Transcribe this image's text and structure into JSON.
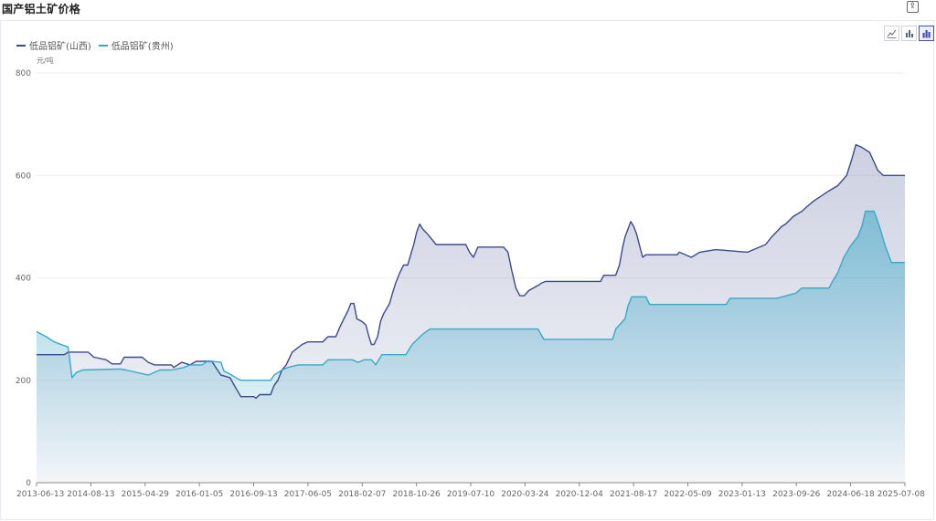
{
  "title": "国产铝土矿价格",
  "legend_labels": [
    "低品铝矿(山西)",
    "低品铝矿(贵州)"
  ],
  "unit_label": "元/吨",
  "colors": {
    "series_shanxi": "#3b4a8a",
    "series_guizhou": "#3ba8c8"
  },
  "icons": [
    "export-icon",
    "line-chart-icon",
    "bar-chart-icon",
    "area-chart-icon"
  ],
  "chart_data": {
    "type": "area",
    "title": "国产铝土矿价格",
    "ylabel": "元/吨",
    "ylim": [
      0,
      800
    ],
    "y_ticks": [
      0,
      200,
      400,
      600,
      800
    ],
    "x_ticks": [
      "2013-06-13",
      "2014-08-13",
      "2015-04-29",
      "2016-01-05",
      "2016-09-13",
      "2017-06-05",
      "2018-02-07",
      "2018-10-26",
      "2019-07-10",
      "2020-03-24",
      "2020-12-04",
      "2021-08-17",
      "2022-05-09",
      "2023-01-13",
      "2023-09-26",
      "2024-06-18",
      "2025-07-08"
    ],
    "x_range": [
      "2013-06-13",
      "2025-07-08"
    ],
    "legend_position": "top-left",
    "series": [
      {
        "name": "低品铝矿(山西)",
        "points": [
          [
            "2013-06-13",
            250
          ],
          [
            "2013-11-01",
            250
          ],
          [
            "2013-11-20",
            255
          ],
          [
            "2014-03-01",
            255
          ],
          [
            "2014-04-01",
            245
          ],
          [
            "2014-06-01",
            240
          ],
          [
            "2014-07-01",
            232
          ],
          [
            "2014-08-13",
            232
          ],
          [
            "2014-09-01",
            245
          ],
          [
            "2014-12-01",
            245
          ],
          [
            "2015-01-01",
            235
          ],
          [
            "2015-02-01",
            230
          ],
          [
            "2015-04-29",
            230
          ],
          [
            "2015-05-10",
            225
          ],
          [
            "2015-06-20",
            235
          ],
          [
            "2015-08-01",
            230
          ],
          [
            "2015-09-01",
            237
          ],
          [
            "2015-11-20",
            237
          ],
          [
            "2015-12-10",
            225
          ],
          [
            "2016-01-05",
            210
          ],
          [
            "2016-02-20",
            205
          ],
          [
            "2016-03-20",
            185
          ],
          [
            "2016-04-15",
            168
          ],
          [
            "2016-06-20",
            168
          ],
          [
            "2016-07-01",
            165
          ],
          [
            "2016-07-20",
            172
          ],
          [
            "2016-09-13",
            172
          ],
          [
            "2016-10-01",
            190
          ],
          [
            "2016-10-20",
            200
          ],
          [
            "2016-11-10",
            220
          ],
          [
            "2016-12-01",
            230
          ],
          [
            "2017-01-01",
            255
          ],
          [
            "2017-02-20",
            270
          ],
          [
            "2017-03-20",
            275
          ],
          [
            "2017-06-05",
            275
          ],
          [
            "2017-07-01",
            285
          ],
          [
            "2017-08-10",
            285
          ],
          [
            "2017-09-01",
            305
          ],
          [
            "2017-09-20",
            320
          ],
          [
            "2017-10-10",
            335
          ],
          [
            "2017-10-25",
            350
          ],
          [
            "2017-11-10",
            350
          ],
          [
            "2017-11-25",
            320
          ],
          [
            "2017-12-20",
            315
          ],
          [
            "2018-01-10",
            308
          ],
          [
            "2018-01-25",
            285
          ],
          [
            "2018-02-07",
            270
          ],
          [
            "2018-02-20",
            270
          ],
          [
            "2018-03-10",
            285
          ],
          [
            "2018-03-25",
            315
          ],
          [
            "2018-04-10",
            330
          ],
          [
            "2018-05-10",
            350
          ],
          [
            "2018-05-25",
            370
          ],
          [
            "2018-06-10",
            390
          ],
          [
            "2018-07-01",
            410
          ],
          [
            "2018-07-20",
            425
          ],
          [
            "2018-08-10",
            425
          ],
          [
            "2018-08-25",
            445
          ],
          [
            "2018-09-10",
            465
          ],
          [
            "2018-09-25",
            490
          ],
          [
            "2018-10-10",
            505
          ],
          [
            "2018-10-26",
            495
          ],
          [
            "2018-11-20",
            485
          ],
          [
            "2019-01-01",
            465
          ],
          [
            "2019-06-01",
            465
          ],
          [
            "2019-06-20",
            450
          ],
          [
            "2019-07-10",
            440
          ],
          [
            "2019-08-01",
            460
          ],
          [
            "2019-12-10",
            460
          ],
          [
            "2020-01-01",
            450
          ],
          [
            "2020-01-20",
            415
          ],
          [
            "2020-02-10",
            380
          ],
          [
            "2020-03-01",
            365
          ],
          [
            "2020-03-24",
            365
          ],
          [
            "2020-04-15",
            375
          ],
          [
            "2020-06-01",
            385
          ],
          [
            "2020-06-20",
            390
          ],
          [
            "2020-07-10",
            393
          ],
          [
            "2021-04-15",
            393
          ],
          [
            "2021-05-01",
            405
          ],
          [
            "2021-07-01",
            405
          ],
          [
            "2021-07-20",
            425
          ],
          [
            "2021-08-05",
            460
          ],
          [
            "2021-08-17",
            480
          ],
          [
            "2021-09-01",
            495
          ],
          [
            "2021-09-15",
            510
          ],
          [
            "2021-10-01",
            500
          ],
          [
            "2021-10-15",
            485
          ],
          [
            "2021-11-01",
            460
          ],
          [
            "2021-11-15",
            440
          ],
          [
            "2021-12-01",
            445
          ],
          [
            "2022-05-09",
            445
          ],
          [
            "2022-05-20",
            450
          ],
          [
            "2022-07-20",
            440
          ],
          [
            "2022-09-01",
            450
          ],
          [
            "2022-11-20",
            455
          ],
          [
            "2023-05-01",
            450
          ],
          [
            "2023-08-01",
            465
          ],
          [
            "2023-09-01",
            480
          ],
          [
            "2023-09-26",
            490
          ],
          [
            "2023-10-20",
            500
          ],
          [
            "2023-11-10",
            505
          ],
          [
            "2023-12-20",
            520
          ],
          [
            "2024-02-01",
            530
          ],
          [
            "2024-03-01",
            540
          ],
          [
            "2024-04-01",
            550
          ],
          [
            "2024-06-18",
            570
          ],
          [
            "2024-08-01",
            580
          ],
          [
            "2024-09-15",
            600
          ],
          [
            "2024-10-10",
            630
          ],
          [
            "2024-11-01",
            660
          ],
          [
            "2024-12-01",
            655
          ],
          [
            "2025-01-10",
            645
          ],
          [
            "2025-02-20",
            610
          ],
          [
            "2025-03-20",
            600
          ],
          [
            "2025-07-08",
            600
          ]
        ]
      },
      {
        "name": "低品铝矿(贵州)",
        "points": [
          [
            "2013-06-13",
            295
          ],
          [
            "2013-08-01",
            285
          ],
          [
            "2013-09-10",
            275
          ],
          [
            "2013-11-20",
            265
          ],
          [
            "2013-12-10",
            205
          ],
          [
            "2014-01-01",
            215
          ],
          [
            "2014-02-01",
            220
          ],
          [
            "2014-08-13",
            222
          ],
          [
            "2014-09-10",
            220
          ],
          [
            "2015-01-01",
            210
          ],
          [
            "2015-03-01",
            220
          ],
          [
            "2015-04-29",
            220
          ],
          [
            "2015-07-01",
            225
          ],
          [
            "2015-08-01",
            230
          ],
          [
            "2015-10-01",
            230
          ],
          [
            "2015-11-01",
            238
          ],
          [
            "2016-01-05",
            235
          ],
          [
            "2016-01-20",
            218
          ],
          [
            "2016-02-20",
            212
          ],
          [
            "2016-03-20",
            205
          ],
          [
            "2016-04-15",
            200
          ],
          [
            "2016-09-13",
            200
          ],
          [
            "2016-10-01",
            210
          ],
          [
            "2016-11-10",
            220
          ],
          [
            "2016-12-10",
            225
          ],
          [
            "2017-02-01",
            230
          ],
          [
            "2017-06-05",
            230
          ],
          [
            "2017-07-01",
            240
          ],
          [
            "2017-11-01",
            240
          ],
          [
            "2017-12-01",
            235
          ],
          [
            "2018-01-01",
            240
          ],
          [
            "2018-02-07",
            240
          ],
          [
            "2018-03-01",
            230
          ],
          [
            "2018-04-01",
            250
          ],
          [
            "2018-08-01",
            250
          ],
          [
            "2018-09-01",
            270
          ],
          [
            "2018-10-26",
            290
          ],
          [
            "2018-12-01",
            300
          ],
          [
            "2020-06-01",
            300
          ],
          [
            "2020-07-01",
            280
          ],
          [
            "2021-06-15",
            280
          ],
          [
            "2021-07-01",
            300
          ],
          [
            "2021-08-17",
            320
          ],
          [
            "2021-09-01",
            345
          ],
          [
            "2021-09-20",
            363
          ],
          [
            "2021-12-01",
            363
          ],
          [
            "2021-12-20",
            348
          ],
          [
            "2023-01-13",
            348
          ],
          [
            "2023-02-01",
            360
          ],
          [
            "2023-09-26",
            360
          ],
          [
            "2024-01-01",
            370
          ],
          [
            "2024-02-01",
            380
          ],
          [
            "2024-06-18",
            380
          ],
          [
            "2024-07-01",
            390
          ],
          [
            "2024-08-01",
            410
          ],
          [
            "2024-09-01",
            440
          ],
          [
            "2024-10-01",
            460
          ],
          [
            "2024-10-20",
            470
          ],
          [
            "2024-11-10",
            480
          ],
          [
            "2024-12-01",
            500
          ],
          [
            "2024-12-20",
            530
          ],
          [
            "2025-02-01",
            530
          ],
          [
            "2025-03-01",
            500
          ],
          [
            "2025-04-01",
            460
          ],
          [
            "2025-05-01",
            430
          ],
          [
            "2025-07-08",
            430
          ]
        ]
      }
    ]
  }
}
